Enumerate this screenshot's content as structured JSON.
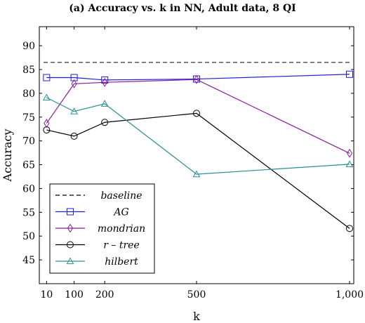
{
  "chart_data": {
    "type": "line",
    "title": "(a) Accuracy vs. k in NN, Adult data, 8 QI",
    "xlabel": "k",
    "ylabel": "Accuracy",
    "x": [
      10,
      100,
      200,
      500,
      1000
    ],
    "x_tick_labels": [
      "10",
      "100",
      "200",
      "500",
      "1,000"
    ],
    "xlim": [
      0,
      1000
    ],
    "ylim": [
      40,
      94
    ],
    "y_ticks": [
      45,
      50,
      55,
      60,
      65,
      70,
      75,
      80,
      85,
      90
    ],
    "grid": false,
    "legend_position": "bottom-left",
    "baseline": {
      "name": "baseline",
      "value": 86.5,
      "color": "#000000",
      "style": "dashed"
    },
    "series": [
      {
        "name": "AG",
        "values": [
          83.3,
          83.3,
          82.8,
          83.0,
          84.0
        ],
        "color": "#1f1fdd",
        "marker": "square"
      },
      {
        "name": "mondrian",
        "values": [
          73.7,
          82.0,
          82.3,
          82.9,
          67.4
        ],
        "color": "#8b1a9b",
        "marker": "diamond"
      },
      {
        "name": "r – tree",
        "values": [
          72.3,
          71.0,
          73.9,
          75.8,
          51.6
        ],
        "color": "#000000",
        "marker": "circle"
      },
      {
        "name": "hilbert",
        "values": [
          79.1,
          76.2,
          77.8,
          63.0,
          65.1
        ],
        "color": "#2a9090",
        "marker": "triangle"
      }
    ]
  }
}
